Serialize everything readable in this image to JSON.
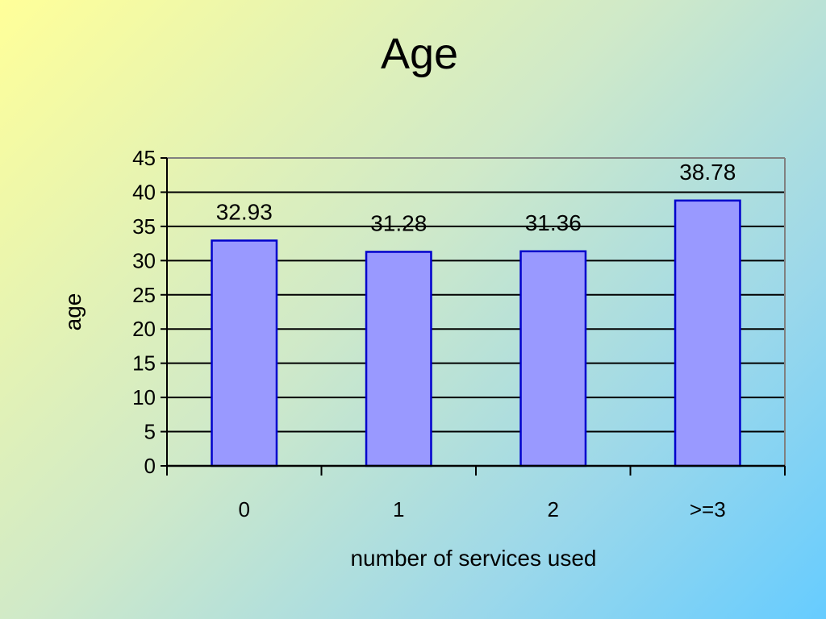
{
  "chart_data": {
    "type": "bar",
    "title": "Age",
    "xlabel": "number of services used",
    "ylabel": "age",
    "categories": [
      "0",
      "1",
      "2",
      ">=3"
    ],
    "values": [
      32.93,
      31.28,
      31.36,
      38.78
    ],
    "value_labels": [
      "32.93",
      "31.28",
      "31.36",
      "38.78"
    ],
    "ylim": [
      0,
      45
    ],
    "yticks": [
      "0",
      "5",
      "10",
      "15",
      "20",
      "25",
      "30",
      "35",
      "40",
      "45"
    ],
    "grid": true,
    "legend": "none",
    "colors": {
      "bar_fill": "#9999ff",
      "bar_stroke": "#0000cc",
      "grid": "#000000"
    }
  }
}
